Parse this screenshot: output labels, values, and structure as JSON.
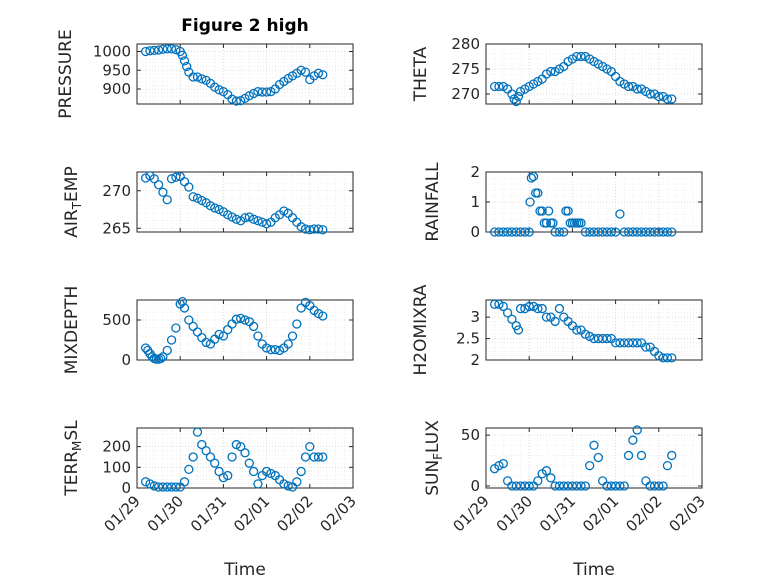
{
  "figure": {
    "title": "Figure 2 high",
    "marker_color": "#0072BD"
  },
  "time_axis": {
    "label": "Time",
    "ticks": [
      {
        "value": 0,
        "label": "01/29"
      },
      {
        "value": 1,
        "label": "01/30"
      },
      {
        "value": 2,
        "label": "01/31"
      },
      {
        "value": 3,
        "label": "02/01"
      },
      {
        "value": 4,
        "label": "02/02"
      },
      {
        "value": 5,
        "label": "02/03"
      }
    ],
    "xlim": [
      0,
      5
    ]
  },
  "chart_data": [
    {
      "type": "scatter",
      "ylabel": "PRESSURE",
      "ylim": [
        860,
        1020
      ],
      "yticks": [
        {
          "v": 900,
          "t": "900"
        },
        {
          "v": 950,
          "t": "950"
        },
        {
          "v": 1000,
          "t": "1000"
        }
      ],
      "xticklabels": false,
      "x": [
        0.2,
        0.3,
        0.4,
        0.5,
        0.6,
        0.7,
        0.8,
        0.9,
        1.0,
        1.05,
        1.1,
        1.15,
        1.2,
        1.3,
        1.4,
        1.5,
        1.6,
        1.7,
        1.8,
        1.9,
        2.0,
        2.1,
        2.2,
        2.3,
        2.4,
        2.5,
        2.6,
        2.7,
        2.8,
        2.9,
        3.0,
        3.1,
        3.2,
        3.3,
        3.4,
        3.5,
        3.6,
        3.7,
        3.8,
        3.9,
        4.0,
        4.1,
        4.2,
        4.3
      ],
      "y": [
        1000,
        1002,
        1003,
        1004,
        1006,
        1007,
        1007,
        1005,
        1000,
        990,
        975,
        960,
        945,
        932,
        932,
        927,
        923,
        915,
        905,
        898,
        893,
        885,
        873,
        868,
        869,
        875,
        882,
        888,
        893,
        892,
        892,
        893,
        900,
        912,
        920,
        928,
        935,
        942,
        950,
        945,
        925,
        935,
        942,
        938
      ]
    },
    {
      "type": "scatter",
      "ylabel": "THETA",
      "ylim": [
        268,
        280
      ],
      "yticks": [
        {
          "v": 270,
          "t": "270"
        },
        {
          "v": 275,
          "t": "275"
        },
        {
          "v": 280,
          "t": "280"
        }
      ],
      "xticklabels": false,
      "x": [
        0.2,
        0.3,
        0.4,
        0.5,
        0.6,
        0.65,
        0.7,
        0.75,
        0.8,
        0.9,
        1.0,
        1.1,
        1.2,
        1.3,
        1.4,
        1.5,
        1.6,
        1.7,
        1.8,
        1.9,
        2.0,
        2.1,
        2.2,
        2.3,
        2.4,
        2.5,
        2.6,
        2.7,
        2.8,
        2.9,
        3.0,
        3.1,
        3.2,
        3.3,
        3.4,
        3.5,
        3.6,
        3.7,
        3.8,
        3.9,
        4.0,
        4.1,
        4.2,
        4.3
      ],
      "y": [
        271.5,
        271.5,
        271.5,
        271.0,
        270.0,
        269.0,
        268.5,
        269.5,
        270.5,
        271.0,
        271.5,
        272.0,
        272.5,
        273.0,
        274.0,
        274.5,
        274.5,
        275.0,
        275.5,
        276.5,
        277.0,
        277.5,
        277.5,
        277.5,
        277.0,
        276.5,
        276.0,
        275.5,
        275.0,
        274.5,
        273.5,
        272.5,
        272.0,
        271.5,
        271.5,
        271.0,
        271.0,
        270.5,
        270.0,
        270.0,
        269.5,
        269.5,
        269.0,
        269.0
      ]
    },
    {
      "type": "scatter",
      "ylabel": "AIR_TEMP",
      "ylim": [
        264.5,
        272.5
      ],
      "yticks": [
        {
          "v": 265,
          "t": "265"
        },
        {
          "v": 270,
          "t": "270"
        }
      ],
      "xticklabels": false,
      "x": [
        0.2,
        0.3,
        0.4,
        0.5,
        0.6,
        0.7,
        0.8,
        0.9,
        1.0,
        1.1,
        1.2,
        1.3,
        1.4,
        1.5,
        1.6,
        1.7,
        1.8,
        1.9,
        2.0,
        2.1,
        2.2,
        2.3,
        2.4,
        2.5,
        2.6,
        2.7,
        2.8,
        2.9,
        3.0,
        3.1,
        3.2,
        3.3,
        3.4,
        3.5,
        3.6,
        3.7,
        3.8,
        3.9,
        4.0,
        4.1,
        4.2,
        4.3
      ],
      "y": [
        271.7,
        272.0,
        271.6,
        270.8,
        269.8,
        268.8,
        271.6,
        271.8,
        271.9,
        271.2,
        270.5,
        269.2,
        269.0,
        268.7,
        268.4,
        268.0,
        267.7,
        267.5,
        267.2,
        266.8,
        266.5,
        266.2,
        266.0,
        266.4,
        266.5,
        266.2,
        266.0,
        265.8,
        265.6,
        265.8,
        266.4,
        266.8,
        267.3,
        267.0,
        266.4,
        265.8,
        265.2,
        264.9,
        264.8,
        264.9,
        264.9,
        264.8
      ]
    },
    {
      "type": "scatter",
      "ylabel": "RAINFALL",
      "ylim": [
        0,
        2
      ],
      "yticks": [
        {
          "v": 0,
          "t": "0"
        },
        {
          "v": 1,
          "t": "1"
        },
        {
          "v": 2,
          "t": "2"
        }
      ],
      "xticklabels": false,
      "x": [
        0.2,
        0.3,
        0.4,
        0.5,
        0.6,
        0.7,
        0.8,
        0.9,
        1.0,
        1.02,
        1.05,
        1.1,
        1.15,
        1.2,
        1.25,
        1.3,
        1.35,
        1.4,
        1.45,
        1.5,
        1.55,
        1.6,
        1.7,
        1.8,
        1.85,
        1.9,
        1.95,
        2.0,
        2.05,
        2.1,
        2.15,
        2.2,
        2.3,
        2.4,
        2.5,
        2.6,
        2.7,
        2.8,
        2.9,
        3.0,
        3.1,
        3.2,
        3.3,
        3.4,
        3.5,
        3.6,
        3.7,
        3.8,
        3.9,
        4.0,
        4.1,
        4.2,
        4.3
      ],
      "y": [
        0,
        0,
        0,
        0,
        0,
        0,
        0,
        0,
        0,
        1.0,
        1.8,
        1.85,
        1.3,
        1.3,
        0.7,
        0.7,
        0.3,
        0.3,
        0.7,
        0.3,
        0.3,
        0,
        0,
        0,
        0.7,
        0.7,
        0.3,
        0.3,
        0.3,
        0.3,
        0.3,
        0.3,
        0,
        0,
        0,
        0,
        0,
        0,
        0,
        0,
        0.6,
        0,
        0,
        0,
        0,
        0,
        0,
        0,
        0,
        0,
        0,
        0,
        0
      ]
    },
    {
      "type": "scatter",
      "ylabel": "MIXDEPTH",
      "ylim": [
        0,
        750
      ],
      "yticks": [
        {
          "v": 0,
          "t": "0"
        },
        {
          "v": 500,
          "t": "500"
        }
      ],
      "xticklabels": false,
      "x": [
        0.2,
        0.25,
        0.3,
        0.35,
        0.4,
        0.45,
        0.5,
        0.55,
        0.6,
        0.7,
        0.8,
        0.9,
        1.0,
        1.05,
        1.1,
        1.2,
        1.3,
        1.4,
        1.5,
        1.6,
        1.7,
        1.8,
        1.9,
        2.0,
        2.1,
        2.2,
        2.3,
        2.4,
        2.5,
        2.6,
        2.7,
        2.8,
        2.9,
        3.0,
        3.1,
        3.2,
        3.3,
        3.4,
        3.5,
        3.6,
        3.7,
        3.8,
        3.9,
        4.0,
        4.1,
        4.2,
        4.3
      ],
      "y": [
        150,
        120,
        80,
        40,
        20,
        10,
        10,
        20,
        40,
        120,
        250,
        400,
        700,
        730,
        650,
        500,
        420,
        350,
        280,
        220,
        200,
        260,
        320,
        300,
        380,
        450,
        510,
        520,
        500,
        480,
        420,
        300,
        200,
        150,
        130,
        130,
        120,
        150,
        200,
        300,
        450,
        650,
        720,
        680,
        620,
        580,
        550
      ]
    },
    {
      "type": "scatter",
      "ylabel": "H2OMIXRA",
      "ylim": [
        2,
        3.4
      ],
      "yticks": [
        {
          "v": 2,
          "t": "2"
        },
        {
          "v": 2.5,
          "t": "2.5"
        },
        {
          "v": 3,
          "t": "3"
        }
      ],
      "xticklabels": false,
      "x": [
        0.2,
        0.3,
        0.4,
        0.5,
        0.6,
        0.7,
        0.75,
        0.8,
        0.9,
        1.0,
        1.1,
        1.2,
        1.3,
        1.4,
        1.5,
        1.6,
        1.7,
        1.8,
        1.9,
        2.0,
        2.1,
        2.2,
        2.3,
        2.4,
        2.5,
        2.6,
        2.7,
        2.8,
        2.9,
        3.0,
        3.1,
        3.2,
        3.3,
        3.4,
        3.5,
        3.6,
        3.7,
        3.8,
        3.9,
        4.0,
        4.1,
        4.2,
        4.3
      ],
      "y": [
        3.3,
        3.3,
        3.25,
        3.1,
        2.95,
        2.8,
        2.7,
        3.2,
        3.2,
        3.25,
        3.25,
        3.2,
        3.2,
        3.0,
        3.0,
        2.9,
        3.2,
        3.0,
        2.9,
        2.8,
        2.7,
        2.7,
        2.6,
        2.55,
        2.5,
        2.5,
        2.5,
        2.5,
        2.5,
        2.4,
        2.4,
        2.4,
        2.4,
        2.4,
        2.4,
        2.4,
        2.3,
        2.3,
        2.2,
        2.1,
        2.05,
        2.05,
        2.05
      ]
    },
    {
      "type": "scatter",
      "ylabel": "TERR_MSL",
      "ylim": [
        0,
        290
      ],
      "yticks": [
        {
          "v": 0,
          "t": "0"
        },
        {
          "v": 100,
          "t": "100"
        },
        {
          "v": 200,
          "t": "200"
        }
      ],
      "xticklabels": true,
      "x": [
        0.2,
        0.3,
        0.4,
        0.5,
        0.6,
        0.7,
        0.8,
        0.9,
        1.0,
        1.1,
        1.2,
        1.3,
        1.4,
        1.5,
        1.6,
        1.7,
        1.8,
        1.9,
        2.0,
        2.1,
        2.2,
        2.3,
        2.4,
        2.5,
        2.6,
        2.7,
        2.8,
        2.9,
        3.0,
        3.1,
        3.2,
        3.3,
        3.4,
        3.5,
        3.6,
        3.7,
        3.8,
        3.9,
        4.0,
        4.1,
        4.2,
        4.3
      ],
      "y": [
        30,
        20,
        10,
        5,
        5,
        5,
        5,
        5,
        5,
        30,
        90,
        150,
        270,
        210,
        180,
        150,
        120,
        80,
        50,
        60,
        150,
        210,
        200,
        170,
        120,
        80,
        20,
        60,
        80,
        70,
        60,
        40,
        20,
        10,
        5,
        30,
        80,
        150,
        200,
        150,
        150,
        150
      ]
    },
    {
      "type": "scatter",
      "ylabel": "SUN_FLUX",
      "ylim": [
        -2,
        57
      ],
      "yticks": [
        {
          "v": 0,
          "t": "0"
        },
        {
          "v": 50,
          "t": "50"
        }
      ],
      "xticklabels": true,
      "x": [
        0.2,
        0.3,
        0.4,
        0.5,
        0.6,
        0.7,
        0.8,
        0.9,
        1.0,
        1.1,
        1.2,
        1.3,
        1.4,
        1.5,
        1.6,
        1.7,
        1.8,
        1.9,
        2.0,
        2.1,
        2.2,
        2.3,
        2.4,
        2.5,
        2.6,
        2.7,
        2.8,
        2.9,
        3.0,
        3.1,
        3.2,
        3.3,
        3.4,
        3.5,
        3.6,
        3.7,
        3.8,
        3.9,
        4.0,
        4.1,
        4.2,
        4.3
      ],
      "y": [
        17,
        20,
        22,
        5,
        0,
        0,
        0,
        0,
        0,
        0,
        5,
        12,
        15,
        8,
        0,
        0,
        0,
        0,
        0,
        0,
        0,
        0,
        20,
        40,
        28,
        5,
        0,
        0,
        0,
        0,
        0,
        30,
        45,
        55,
        30,
        5,
        0,
        0,
        0,
        0,
        20,
        30
      ]
    }
  ]
}
